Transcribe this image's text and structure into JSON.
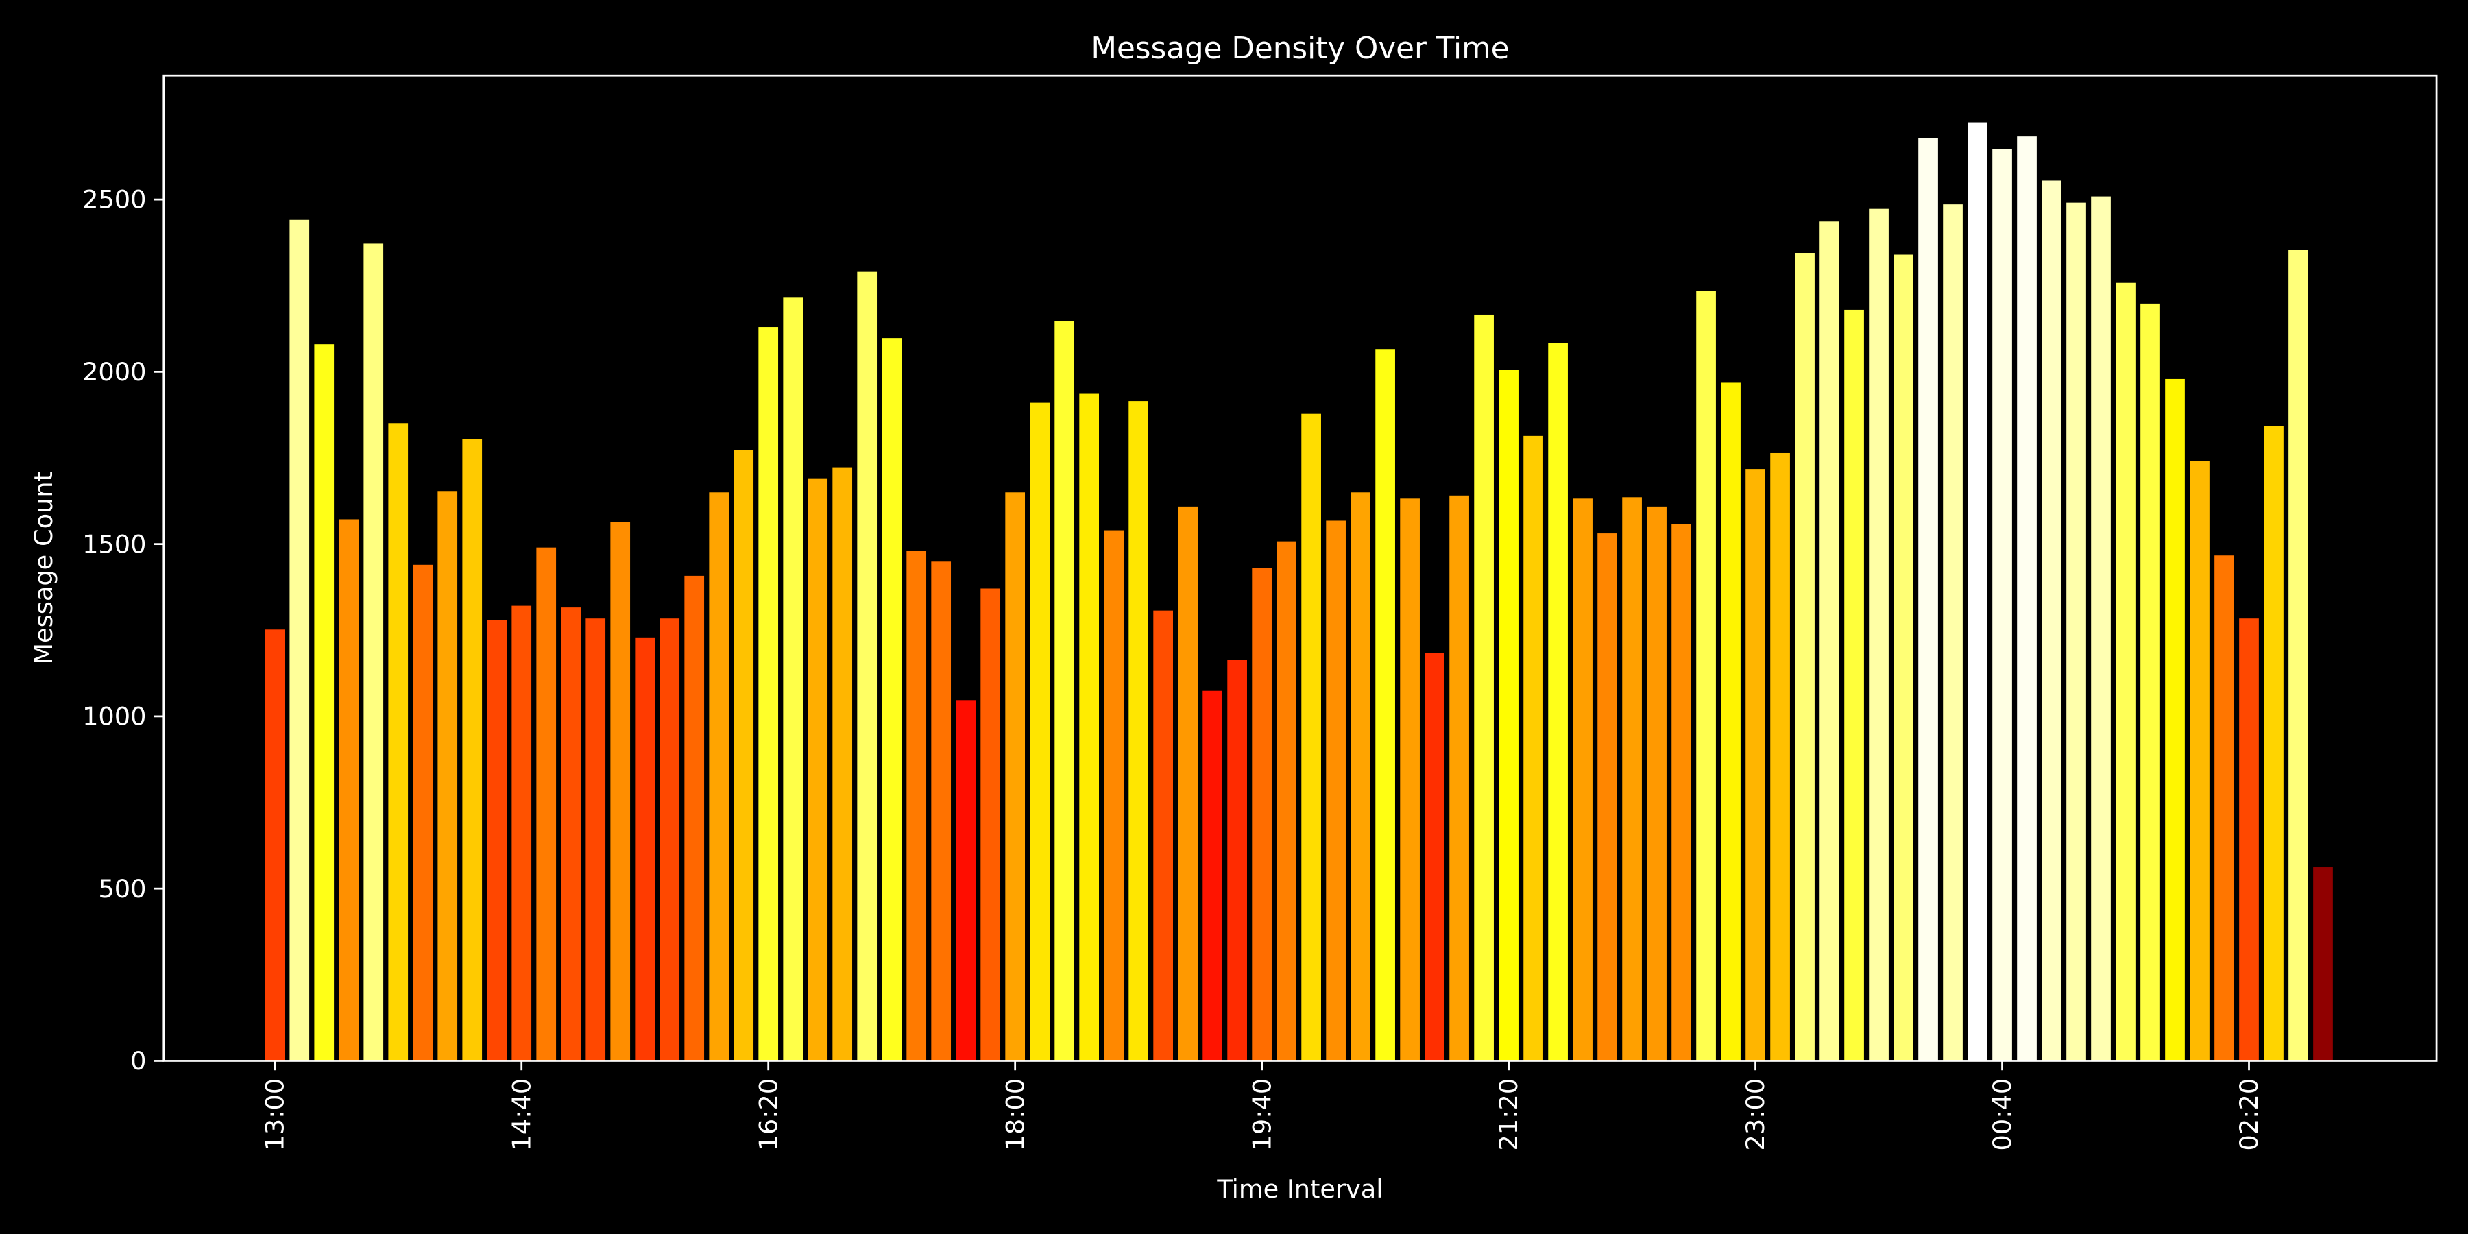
{
  "chart_data": {
    "type": "bar",
    "title": "Message Density Over Time",
    "xlabel": "Time Interval",
    "ylabel": "Message Count",
    "ylim": [
      0,
      2860
    ],
    "xlim_index": [
      -4.5,
      87.6
    ],
    "grid": false,
    "colormap": "hot (value / max)",
    "interval_minutes": 10,
    "start_time": "13:00",
    "xticks": [
      {
        "index": 0,
        "label": "13:00"
      },
      {
        "index": 10,
        "label": "14:40"
      },
      {
        "index": 20,
        "label": "16:20"
      },
      {
        "index": 30,
        "label": "18:00"
      },
      {
        "index": 40,
        "label": "19:40"
      },
      {
        "index": 50,
        "label": "21:20"
      },
      {
        "index": 60,
        "label": "23:00"
      },
      {
        "index": 70,
        "label": "00:40"
      },
      {
        "index": 80,
        "label": "02:20"
      }
    ],
    "yticks": [
      0,
      500,
      1000,
      1500,
      2000,
      2500
    ],
    "values": [
      1252,
      2441,
      2080,
      1572,
      2372,
      1851,
      1440,
      1654,
      1805,
      1280,
      1321,
      1490,
      1316,
      1284,
      1563,
      1229,
      1284,
      1408,
      1650,
      1773,
      2130,
      2217,
      1691,
      1723,
      2290,
      2098,
      1481,
      1449,
      1047,
      1371,
      1650,
      1910,
      2148,
      1938,
      1540,
      1915,
      1307,
      1609,
      1074,
      1165,
      1431,
      1508,
      1878,
      1568,
      1650,
      2066,
      1632,
      1184,
      1641,
      2166,
      2006,
      1814,
      2084,
      1632,
      1531,
      1636,
      1609,
      1558,
      2235,
      1970,
      1718,
      1764,
      2345,
      2436,
      2180,
      2473,
      2340,
      2678,
      2486,
      2724,
      2646,
      2683,
      2555,
      2491,
      2509,
      2258,
      2198,
      1979,
      1741,
      1467,
      1284,
      1842,
      2354,
      562
    ]
  },
  "colors": {
    "background": "#000000",
    "axis": "#ffffff",
    "text": "#ffffff"
  }
}
